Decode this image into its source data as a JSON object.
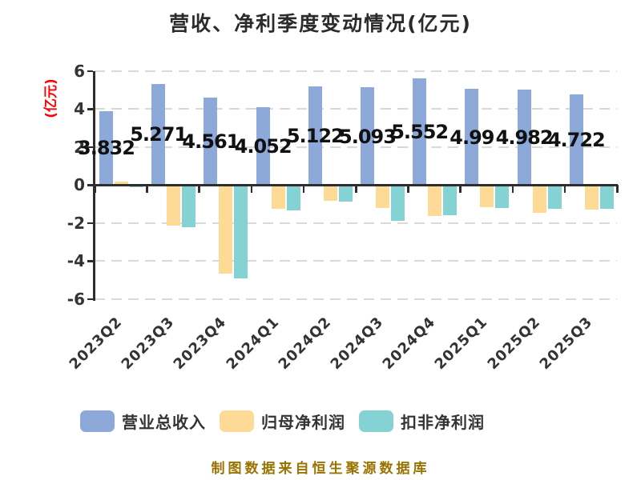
{
  "chart_data": {
    "type": "bar",
    "title": "营收、净利季度变动情况(亿元)",
    "xlabel": "",
    "ylabel": "(亿元)",
    "ylabel_color": "#ff0000",
    "ylim": [
      -6,
      6
    ],
    "yticks": [
      6,
      4,
      2,
      0,
      -2,
      -4,
      -6
    ],
    "grid": "horizontal dashed",
    "grid_color": "#d9d9d9",
    "axis_color": "#2e2e2e",
    "legend_position": "bottom",
    "categories": [
      "2023Q2",
      "2023Q3",
      "2023Q4",
      "2024Q1",
      "2024Q2",
      "2024Q3",
      "2024Q4",
      "2025Q1",
      "2025Q2",
      "2025Q3"
    ],
    "series": [
      {
        "key": "revenue",
        "name": "营业总收入",
        "color": "#8CA9D9",
        "values": [
          3.832,
          5.271,
          4.561,
          4.052,
          5.122,
          5.093,
          5.552,
          4.99,
          4.982,
          4.722
        ],
        "labels": [
          "3.832",
          "5.271",
          "4.561",
          "4.052",
          "5.122",
          "5.093",
          "5.552",
          "4.99",
          "4.982",
          "4.722"
        ]
      },
      {
        "key": "net-profit",
        "name": "归母净利润",
        "color": "#FDDA96",
        "values": [
          0.13,
          -2.05,
          -4.58,
          -1.19,
          -0.76,
          -1.15,
          -1.57,
          -1.11,
          -1.4,
          -1.21
        ]
      },
      {
        "key": "net-profit-excl-nonrecurring",
        "name": "扣非净利润",
        "color": "#85D2D4",
        "values": [
          -0.06,
          -2.16,
          -4.85,
          -1.28,
          -0.78,
          -1.82,
          -1.5,
          -1.14,
          -1.17,
          -1.17
        ]
      }
    ],
    "note": "Only the revenue series carries data labels; negative series values estimated from bar heights.",
    "source_note": "制图数据来自恒生聚源数据库",
    "source_note_color": "#9a7200"
  }
}
